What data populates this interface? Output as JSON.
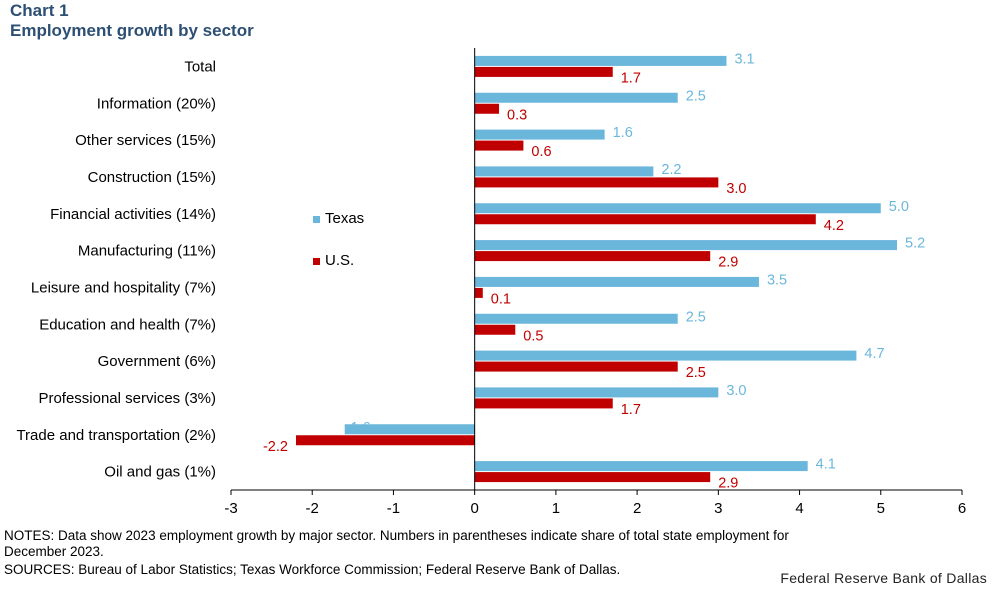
{
  "header": {
    "chart_number": "Chart 1",
    "subtitle": "Employment growth by sector"
  },
  "chart_data": {
    "type": "bar",
    "orientation": "horizontal",
    "title": "Chart 1",
    "subtitle": "Employment growth by sector",
    "categories": [
      "Total",
      "Information (20%)",
      "Other services (15%)",
      "Construction (15%)",
      "Financial activities (14%)",
      "Manufacturing (11%)",
      "Leisure and hospitality (7%)",
      "Education and health (7%)",
      "Government (6%)",
      "Professional services (3%)",
      "Trade and transportation (2%)",
      "Oil and gas (1%)"
    ],
    "series": [
      {
        "name": "Texas",
        "color": "#6bb7dc",
        "label_color": "#6bb7dc",
        "values": [
          3.1,
          2.5,
          1.6,
          2.2,
          5.0,
          5.2,
          3.5,
          2.5,
          4.7,
          3.0,
          -1.6,
          4.1
        ],
        "labels": [
          "3.1",
          "2.5",
          "1.6",
          "2.2",
          "5.0",
          "5.2",
          "3.5",
          "2.5",
          "4.7",
          "3.0",
          "-1.6",
          "4.1"
        ]
      },
      {
        "name": "U.S.",
        "color": "#c00000",
        "label_color": "#c00000",
        "values": [
          1.7,
          0.3,
          0.6,
          3.0,
          4.2,
          2.9,
          0.1,
          0.5,
          2.5,
          1.7,
          -2.2,
          2.9
        ],
        "labels": [
          "1.7",
          "0.3",
          "0.6",
          "3.0",
          "4.2",
          "2.9",
          "0.1",
          "0.5",
          "2.5",
          "1.7",
          "-2.2",
          "2.9"
        ]
      }
    ],
    "xlim": [
      -3,
      6
    ],
    "xticks": [
      "-3",
      "-2",
      "-1",
      "0",
      "1",
      "2",
      "3",
      "4",
      "5",
      "6"
    ],
    "xlabel": "",
    "ylabel": "",
    "grid": false,
    "legend_placement": "middle-left of plot"
  },
  "footer": {
    "notes_line1": "NOTES: Data show 2023 employment growth by major sector. Numbers in parentheses indicate share of total state employment for",
    "notes_line2": "December 2023.",
    "sources": "SOURCES: Bureau of Labor Statistics; Texas Workforce Commission; Federal Reserve Bank of Dallas.",
    "credit": "Federal Reserve Bank of Dallas"
  }
}
